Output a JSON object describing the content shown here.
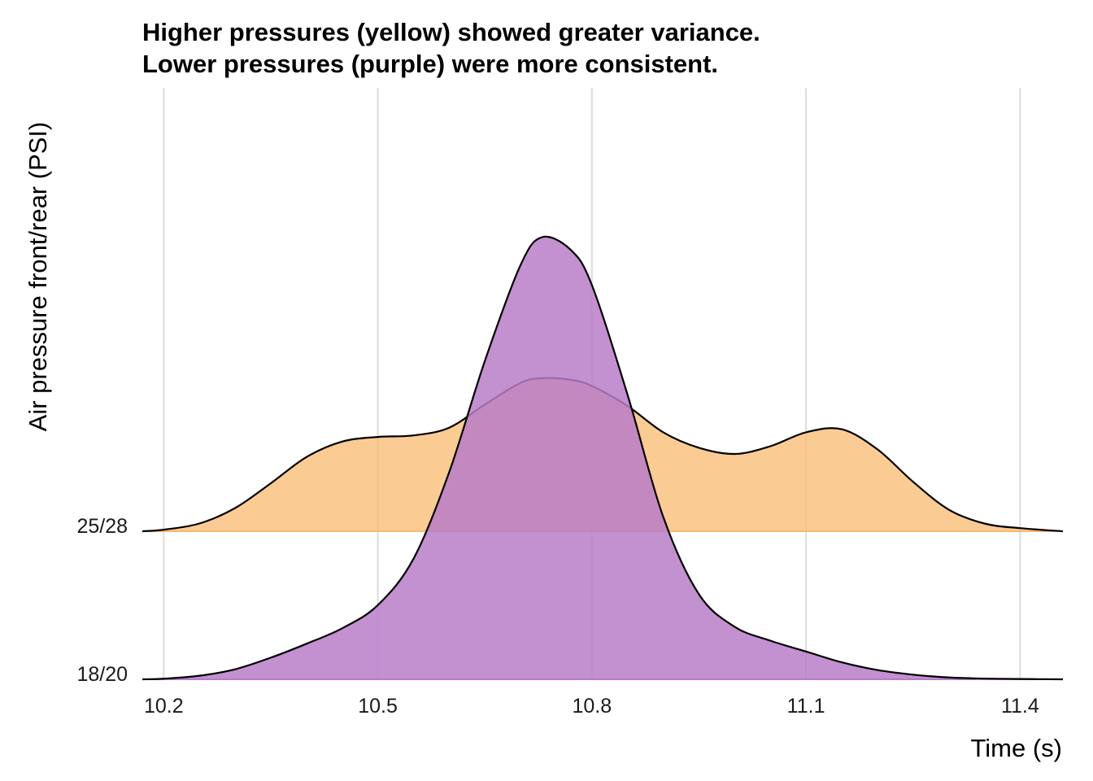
{
  "chart_data": {
    "type": "ridgeline",
    "title": "Higher pressures (yellow) showed greater variance.",
    "subtitle": "Lower pressures (purple) were more consistent.",
    "xlabel": "Time (s)",
    "ylabel": "Air pressure front/rear (PSI)",
    "xlim": [
      10.17,
      11.46
    ],
    "x_ticks": [
      "10.2",
      "10.5",
      "10.8",
      "11.1",
      "11.4"
    ],
    "x_tick_values": [
      10.2,
      10.5,
      10.8,
      11.1,
      11.4
    ],
    "grid": true,
    "categories": [
      "18/20",
      "25/28"
    ],
    "series": [
      {
        "name": "18/20",
        "color": "#b87cc8",
        "x": [
          10.17,
          10.2,
          10.25,
          10.3,
          10.35,
          10.4,
          10.45,
          10.5,
          10.55,
          10.6,
          10.65,
          10.7,
          10.73,
          10.77,
          10.8,
          10.85,
          10.9,
          10.95,
          11.0,
          11.05,
          11.1,
          11.15,
          11.2,
          11.25,
          11.3,
          11.35,
          11.4,
          11.46
        ],
        "density": [
          0.0,
          0.004,
          0.023,
          0.065,
          0.14,
          0.23,
          0.33,
          0.48,
          0.78,
          1.34,
          2.06,
          2.68,
          2.86,
          2.78,
          2.55,
          1.84,
          1.05,
          0.55,
          0.34,
          0.25,
          0.18,
          0.11,
          0.06,
          0.03,
          0.012,
          0.005,
          0.002,
          0.0
        ]
      },
      {
        "name": "25/28",
        "color": "#f8b96f",
        "x": [
          10.17,
          10.2,
          10.25,
          10.3,
          10.35,
          10.4,
          10.45,
          10.5,
          10.55,
          10.6,
          10.65,
          10.7,
          10.73,
          10.77,
          10.8,
          10.85,
          10.9,
          10.95,
          11.0,
          11.05,
          11.1,
          11.15,
          11.2,
          11.25,
          11.3,
          11.35,
          11.4,
          11.46
        ],
        "density": [
          0.0,
          0.01,
          0.05,
          0.15,
          0.31,
          0.48,
          0.58,
          0.61,
          0.62,
          0.67,
          0.82,
          0.96,
          0.99,
          0.98,
          0.94,
          0.81,
          0.64,
          0.54,
          0.5,
          0.55,
          0.64,
          0.66,
          0.53,
          0.32,
          0.14,
          0.05,
          0.02,
          0.0
        ]
      }
    ]
  }
}
